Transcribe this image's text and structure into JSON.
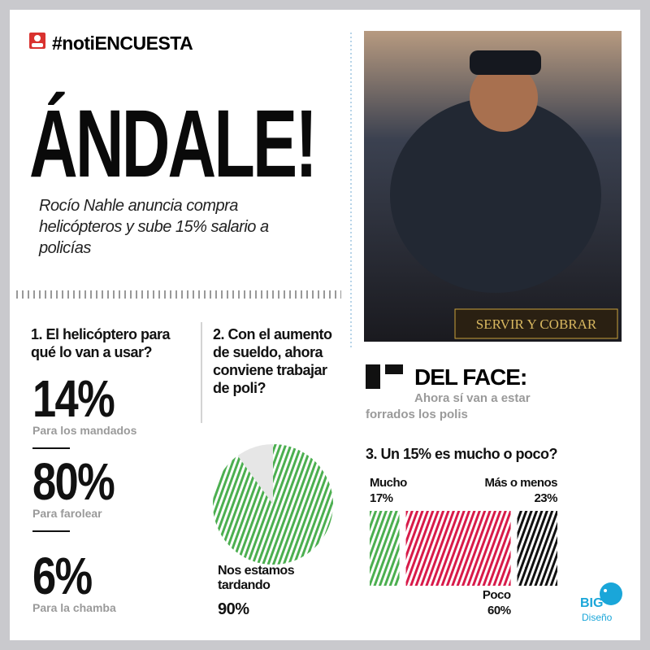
{
  "header": {
    "tag": "#notiENCUESTA"
  },
  "headline": "ÁNDALE!",
  "subtitle": "Rocío Nahle anuncia compra helicópteros y sube 15% salario a policías",
  "photo": {
    "sign": "SERVIR Y COBRAR"
  },
  "q1": {
    "question": "1. El helicóptero para qué lo van a usar?",
    "answers": [
      {
        "value": "14%",
        "label": "Para los mandados"
      },
      {
        "value": "80%",
        "label": "Para farolear"
      },
      {
        "value": "6%",
        "label": "Para la chamba"
      }
    ]
  },
  "q2": {
    "question": "2. Con el aumento de sueldo, ahora conviene trabajar de poli?",
    "label": "Nos estamos tardando",
    "value": 90,
    "value_label": "90%",
    "color": "#4caf50"
  },
  "face": {
    "title": "DEL FACE:",
    "quote": "Ahora sí van a estar forrados los polis"
  },
  "q3": {
    "question": "3. Un 15% es mucho o poco?",
    "segments": [
      {
        "name": "Mucho",
        "value": 17,
        "value_label": "17%",
        "color": "#4caf50"
      },
      {
        "name": "Poco",
        "value": 60,
        "value_label": "60%",
        "color": "#d81b4a"
      },
      {
        "name": "Más o menos",
        "value": 23,
        "value_label": "23%",
        "color": "#111111"
      }
    ]
  },
  "logo": {
    "brand": "BIG",
    "sub": "Diseño"
  }
}
